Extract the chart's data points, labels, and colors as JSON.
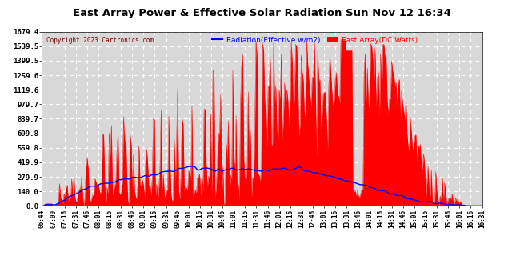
{
  "title": "East Array Power & Effective Solar Radiation Sun Nov 12 16:34",
  "copyright": "Copyright 2023 Cartronics.com",
  "legend_radiation": "Radiation(Effective w/m2)",
  "legend_east": "East Array(DC Watts)",
  "y_ticks": [
    0.0,
    140.0,
    279.9,
    419.9,
    559.8,
    699.8,
    839.7,
    979.7,
    1119.6,
    1259.6,
    1399.5,
    1539.5,
    1679.4
  ],
  "y_max": 1679.4,
  "background_color": "#ffffff",
  "plot_bg_color": "#d8d8d8",
  "grid_color": "#ffffff",
  "title_color": "#000000",
  "copyright_color": "#800000",
  "radiation_color": "#0000ff",
  "east_array_color": "#ff0000",
  "x_labels": [
    "06:44",
    "07:00",
    "07:16",
    "07:31",
    "07:46",
    "08:01",
    "08:16",
    "08:31",
    "08:46",
    "09:01",
    "09:16",
    "09:31",
    "09:46",
    "10:01",
    "10:16",
    "10:31",
    "10:46",
    "11:01",
    "11:16",
    "11:31",
    "11:46",
    "12:01",
    "12:16",
    "12:31",
    "12:46",
    "13:01",
    "13:16",
    "13:31",
    "13:46",
    "14:01",
    "14:16",
    "14:31",
    "14:46",
    "15:01",
    "15:16",
    "15:31",
    "15:46",
    "16:01",
    "16:16",
    "16:31"
  ]
}
